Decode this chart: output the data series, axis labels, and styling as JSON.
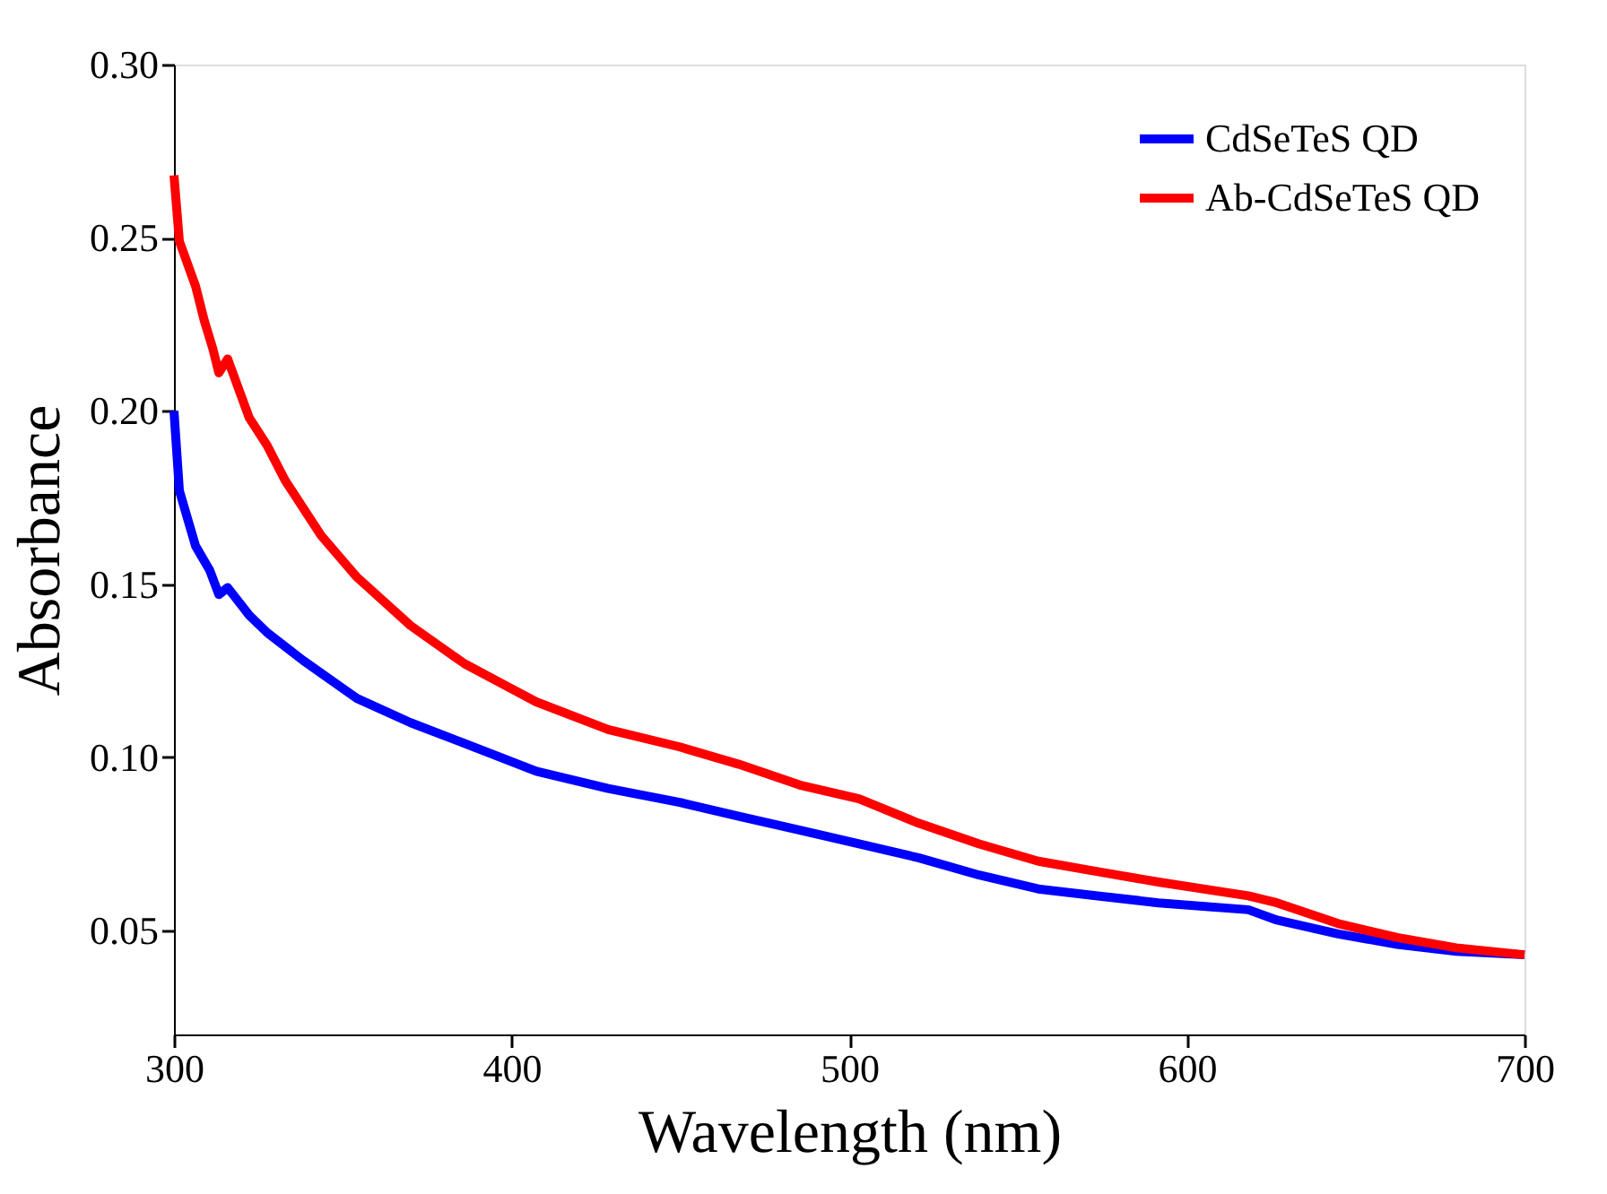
{
  "chart_data": {
    "type": "line",
    "xlabel": "Wavelength (nm)",
    "ylabel": "Absorbance",
    "xlim": [
      300,
      700
    ],
    "xticks": [
      300,
      400,
      500,
      600,
      700
    ],
    "ylim": [
      0.02,
      0.3
    ],
    "yticks": [
      {
        "value": 0.05,
        "label": "0.05"
      },
      {
        "value": 0.1,
        "label": "0.10"
      },
      {
        "value": 0.15,
        "label": "0.15"
      },
      {
        "value": 0.2,
        "label": "0.20"
      },
      {
        "value": 0.25,
        "label": "0.25"
      },
      {
        "value": 0.3,
        "label": "0.30"
      }
    ],
    "grid": false,
    "legend": "top right",
    "line_style": "solid",
    "marker": "none",
    "series": [
      {
        "name": "CdSeTeS QD",
        "color": "#0000ff",
        "x": [
          300,
          301.6,
          306.4,
          310.6,
          313.3,
          315.9,
          322.3,
          327.6,
          338.2,
          354.2,
          370.1,
          386.1,
          407.3,
          428.6,
          449.8,
          467.3,
          485.4,
          502.9,
          520.5,
          538.5,
          556,
          573.6,
          591.6,
          618.2,
          626.7,
          644.8,
          662.3,
          679.8,
          700
        ],
        "values": [
          0.2,
          0.177,
          0.161,
          0.154,
          0.147,
          0.149,
          0.141,
          0.136,
          0.128,
          0.117,
          0.11,
          0.104,
          0.096,
          0.091,
          0.087,
          0.083,
          0.079,
          0.075,
          0.071,
          0.066,
          0.062,
          0.06,
          0.058,
          0.056,
          0.053,
          0.049,
          0.046,
          0.044,
          0.043
        ]
      },
      {
        "name": "Ab-CdSeTeS QD",
        "color": "#ff0000",
        "x": [
          300,
          301.6,
          306.4,
          309,
          311.5,
          313.3,
          315.9,
          322.3,
          327.6,
          332.9,
          343.6,
          354.2,
          370.1,
          386.1,
          407.3,
          428.6,
          449.8,
          467.3,
          485.4,
          502.9,
          520.5,
          538.5,
          556,
          573.6,
          591.6,
          618.2,
          626.7,
          644.8,
          662.3,
          679.8,
          700
        ],
        "values": [
          0.268,
          0.249,
          0.236,
          0.226,
          0.218,
          0.211,
          0.215,
          0.198,
          0.19,
          0.18,
          0.164,
          0.152,
          0.138,
          0.127,
          0.116,
          0.108,
          0.103,
          0.098,
          0.092,
          0.088,
          0.081,
          0.075,
          0.07,
          0.067,
          0.064,
          0.06,
          0.058,
          0.052,
          0.048,
          0.045,
          0.043
        ]
      }
    ]
  }
}
